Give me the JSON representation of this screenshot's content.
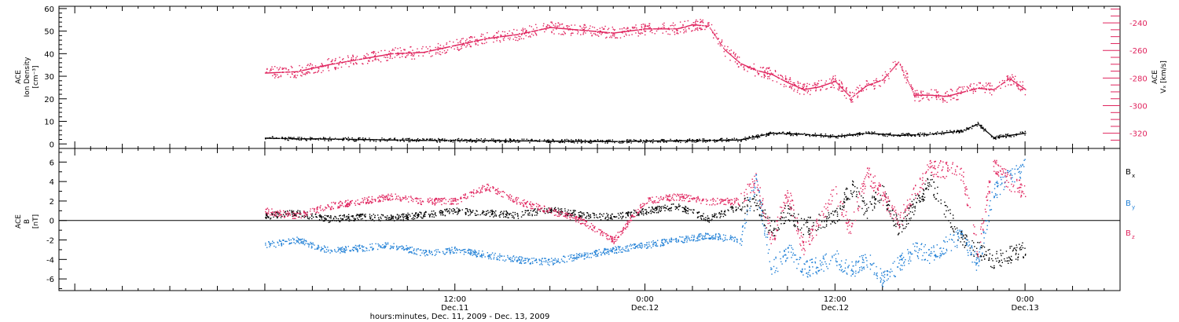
{
  "colors": {
    "black": "#000000",
    "red": "#e0245e",
    "blue": "#1f7fd6",
    "axis": "#000000"
  },
  "time_axis": {
    "caption": "hours:minutes, Dec. 11, 2009 - Dec. 13, 2009",
    "range_hours": [
      -13,
      54
    ],
    "major_ticks": [
      {
        "t": 12,
        "time": "12:00",
        "day": "Dec.11"
      },
      {
        "t": 24,
        "time": "0:00",
        "day": "Dec.12"
      },
      {
        "t": 36,
        "time": "12:00",
        "day": "Dec.12"
      },
      {
        "t": 48,
        "time": "0:00",
        "day": "Dec.13"
      }
    ]
  },
  "chart_data": [
    {
      "type": "scatter",
      "ylabel": [
        "ACE",
        "Ion Density",
        "[cm⁻³]"
      ],
      "ylim": [
        -2,
        61
      ],
      "yticks": [
        0,
        10,
        20,
        30,
        40,
        50,
        60
      ],
      "right_axis": {
        "ylabel": [
          "ACE",
          "Vₓ [km/s]"
        ],
        "ylim": [
          -331,
          -228
        ],
        "yticks": [
          -240,
          -260,
          -280,
          -300,
          -320
        ],
        "color": "#e0245e"
      },
      "series": [
        {
          "color": "#000000",
          "axis": "left",
          "x": [
            0,
            2,
            4,
            6,
            8,
            10,
            12,
            14,
            16,
            18,
            20,
            22,
            24,
            26,
            28,
            30,
            32,
            34,
            36,
            38,
            40,
            42,
            44,
            45,
            46,
            47,
            48
          ],
          "y": [
            2.8,
            2.5,
            2.4,
            2.2,
            2.0,
            1.8,
            1.8,
            1.7,
            1.6,
            1.5,
            1.4,
            1.3,
            1.5,
            1.6,
            1.8,
            2.0,
            5.0,
            4.5,
            3.5,
            5.0,
            4.0,
            4.5,
            6.0,
            9.0,
            3.0,
            4.0,
            5.0
          ]
        },
        {
          "color": "#e0245e",
          "axis": "right",
          "x": [
            0,
            2,
            4,
            6,
            8,
            10,
            12,
            14,
            16,
            18,
            20,
            22,
            24,
            26,
            27,
            28,
            29,
            30,
            31,
            32,
            33,
            34,
            35,
            36,
            37,
            38,
            39,
            40,
            41,
            42,
            43,
            44,
            45,
            46,
            47,
            48
          ],
          "y": [
            -276,
            -275,
            -270,
            -266,
            -262,
            -261,
            -256,
            -251,
            -248,
            -243,
            -245,
            -247,
            -244,
            -244,
            -241,
            -242,
            -259,
            -269,
            -274,
            -277,
            -283,
            -288,
            -286,
            -282,
            -294,
            -285,
            -281,
            -268,
            -292,
            -292,
            -293,
            -290,
            -287,
            -288,
            -280,
            -288
          ]
        }
      ]
    },
    {
      "type": "scatter",
      "ylabel": [
        "ACE",
        "B",
        "[nT]"
      ],
      "ylim": [
        -7.2,
        7.4
      ],
      "yticks": [
        6,
        4,
        2,
        0,
        -2,
        -4,
        -6
      ],
      "zero_line": true,
      "legend": [
        {
          "label": "B",
          "sub": "x",
          "color": "#000000"
        },
        {
          "label": "B",
          "sub": "y",
          "color": "#1f7fd6"
        },
        {
          "label": "B",
          "sub": "z",
          "color": "#e0245e"
        }
      ],
      "series": [
        {
          "name": "Bx",
          "color": "#000000",
          "x": [
            0,
            2,
            4,
            6,
            8,
            10,
            12,
            14,
            16,
            18,
            20,
            22,
            24,
            26,
            28,
            30,
            31,
            32,
            33,
            34,
            36,
            37,
            38,
            39,
            40,
            42,
            44,
            45,
            46,
            47,
            48
          ],
          "y": [
            0.5,
            0.8,
            0.2,
            0.4,
            0.3,
            0.6,
            1.0,
            0.8,
            0.6,
            1.2,
            0.6,
            0.4,
            1.0,
            1.5,
            0.2,
            1.5,
            2.0,
            -1.0,
            1.0,
            -0.6,
            0.2,
            3.5,
            1.0,
            3.0,
            -0.8,
            4.0,
            -2.0,
            -3.0,
            -4.0,
            -3.5,
            -3.0
          ]
        },
        {
          "name": "By",
          "color": "#1f7fd6",
          "x": [
            0,
            2,
            4,
            6,
            8,
            10,
            12,
            14,
            16,
            18,
            20,
            22,
            24,
            26,
            28,
            30,
            31,
            32,
            33,
            34,
            35,
            36,
            37,
            38,
            39,
            40,
            41,
            42,
            44,
            45,
            46,
            47,
            48
          ],
          "y": [
            -2.5,
            -2.0,
            -3.0,
            -2.8,
            -2.5,
            -3.3,
            -3.0,
            -3.5,
            -4.0,
            -4.2,
            -3.6,
            -3.0,
            -2.5,
            -2.0,
            -1.5,
            -2.0,
            4.0,
            -5.0,
            -3.0,
            -5.0,
            -4.5,
            -3.8,
            -5.0,
            -4.0,
            -6.0,
            -4.5,
            -3.0,
            -3.5,
            -1.5,
            -4.5,
            3.0,
            4.5,
            5.5
          ]
        },
        {
          "name": "Bz",
          "color": "#e0245e",
          "x": [
            0,
            2,
            4,
            6,
            8,
            10,
            12,
            14,
            16,
            18,
            20,
            22,
            24,
            26,
            28,
            30,
            31,
            32,
            33,
            34,
            36,
            37,
            38,
            40,
            42,
            44,
            45,
            46,
            47,
            48
          ],
          "y": [
            1.0,
            0.5,
            1.5,
            2.0,
            2.5,
            2.0,
            2.0,
            3.5,
            2.0,
            1.0,
            0.0,
            -2.0,
            2.0,
            2.5,
            2.0,
            2.0,
            4.0,
            -2.0,
            3.0,
            -3.0,
            3.0,
            -1.0,
            5.0,
            0.0,
            5.5,
            5.0,
            -3.0,
            6.0,
            4.0,
            3.0
          ]
        }
      ]
    }
  ]
}
